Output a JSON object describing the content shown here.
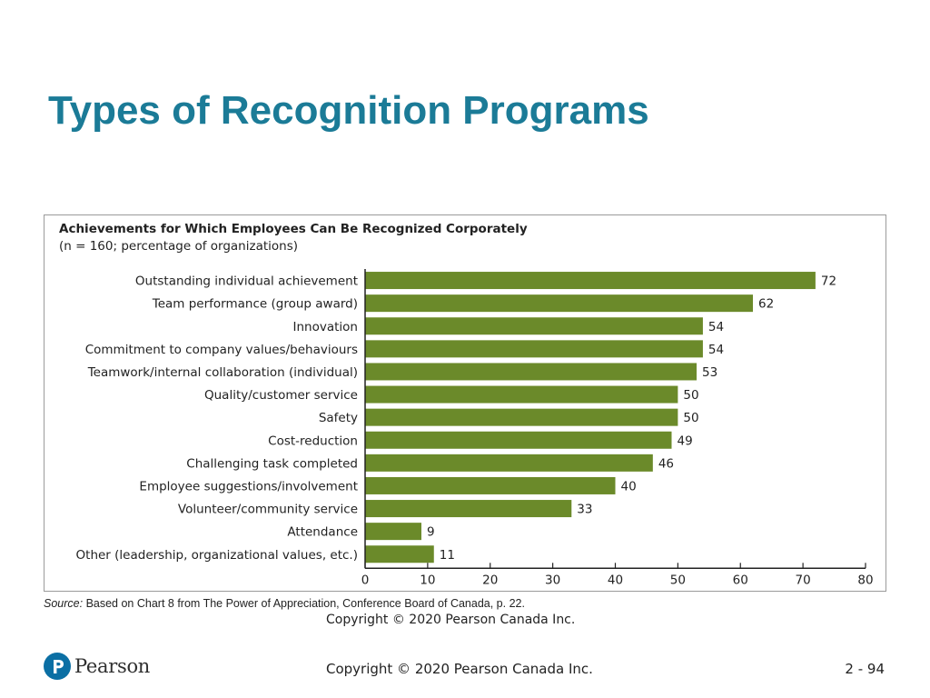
{
  "slide": {
    "title": "Types of Recognition Programs",
    "footer_copyright": "Copyright © 2020 Pearson Canada Inc.",
    "page_number": "2 - 94",
    "logo_text": "Pearson"
  },
  "figure": {
    "source_label": "Source:",
    "source_text": " Based on Chart 8 from  The Power of Appreciation, Conference Board of Canada, p. 22.",
    "copyright": "Copyright © 2020 Pearson Canada Inc."
  },
  "colors": {
    "title": "#1b7b97",
    "bar": "#6b8a2a",
    "logo": "#0b6fa4"
  },
  "chart_data": {
    "type": "bar",
    "orientation": "horizontal",
    "title": "Achievements for Which Employees Can Be Recognized Corporately",
    "subtitle": "(n = 160; percentage of organizations)",
    "categories": [
      "Outstanding individual achievement",
      "Team performance (group award)",
      "Innovation",
      "Commitment to company values/behaviours",
      "Teamwork/internal collaboration (individual)",
      "Quality/customer service",
      "Safety",
      "Cost-reduction",
      "Challenging task completed",
      "Employee suggestions/involvement",
      "Volunteer/community service",
      "Attendance",
      "Other (leadership, organizational values, etc.)"
    ],
    "values": [
      72,
      62,
      54,
      54,
      53,
      50,
      50,
      49,
      46,
      40,
      33,
      9,
      11
    ],
    "xlim": [
      0,
      80
    ],
    "xticks": [
      0,
      10,
      20,
      30,
      40,
      50,
      60,
      70,
      80
    ],
    "grid": false,
    "legend": "none"
  }
}
